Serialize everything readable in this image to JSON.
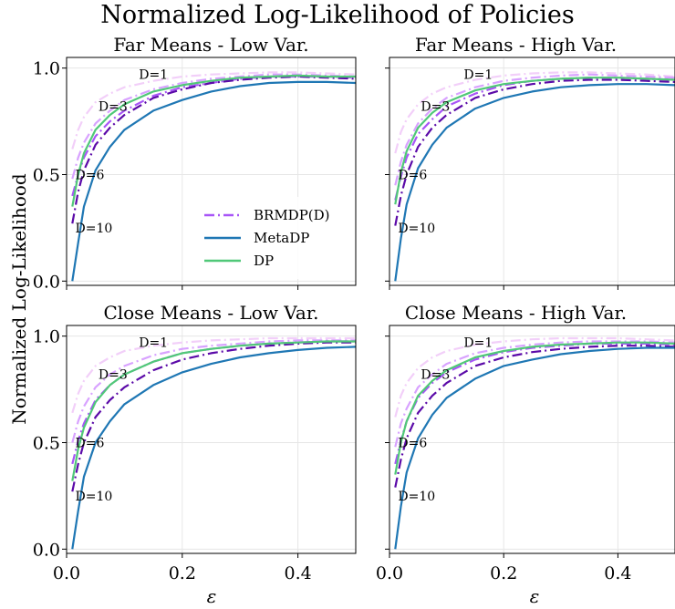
{
  "figure": {
    "title": "Normalized Log-Likelihood of Policies",
    "ylabel": "Normalized Log-Likelihood",
    "xlabel": "ε"
  },
  "legend": {
    "items": [
      {
        "label": "BRMDP(D)",
        "color": "#a855f7",
        "style": "dashdot"
      },
      {
        "label": "MetaDP",
        "color": "#1f77b4",
        "style": "solid"
      },
      {
        "label": "DP",
        "color": "#50c878",
        "style": "solid"
      }
    ]
  },
  "chart_data": [
    {
      "type": "line",
      "title": "Far Means - Low Var.",
      "xlim": [
        0,
        0.5
      ],
      "ylim": [
        -0.02,
        1.05
      ],
      "xticks": [
        "0.0",
        "0.2",
        "0.4"
      ],
      "yticks": [
        "0.0",
        "0.5",
        "1.0"
      ],
      "grid": true,
      "x": [
        0.01,
        0.02,
        0.03,
        0.05,
        0.075,
        0.1,
        0.15,
        0.2,
        0.25,
        0.3,
        0.35,
        0.4,
        0.45,
        0.5
      ],
      "series": [
        {
          "name": "BRMDP(D)",
          "depth": "D=1",
          "color": "#f2cff9",
          "dash": "dashdot",
          "values": [
            0.62,
            0.71,
            0.77,
            0.84,
            0.88,
            0.91,
            0.94,
            0.96,
            0.97,
            0.975,
            0.98,
            0.98,
            0.975,
            0.97
          ]
        },
        {
          "name": "BRMDP(D)",
          "depth": "D=3",
          "color": "#d8a2ff",
          "dash": "dashdot",
          "values": [
            0.48,
            0.58,
            0.65,
            0.74,
            0.8,
            0.85,
            0.9,
            0.93,
            0.95,
            0.96,
            0.97,
            0.97,
            0.965,
            0.96
          ]
        },
        {
          "name": "BRMDP(D)",
          "depth": "D=6",
          "color": "#a855f7",
          "dash": "dashdot",
          "values": [
            0.4,
            0.5,
            0.58,
            0.68,
            0.75,
            0.8,
            0.87,
            0.91,
            0.93,
            0.95,
            0.96,
            0.96,
            0.96,
            0.955
          ]
        },
        {
          "name": "BRMDP(D)",
          "depth": "D=10",
          "color": "#5b0aa8",
          "dash": "dashdot",
          "values": [
            0.27,
            0.42,
            0.52,
            0.64,
            0.72,
            0.78,
            0.86,
            0.9,
            0.93,
            0.945,
            0.955,
            0.96,
            0.955,
            0.95
          ]
        },
        {
          "name": "MetaDP",
          "color": "#1f77b4",
          "dash": "solid",
          "values": [
            0.0,
            0.18,
            0.35,
            0.52,
            0.63,
            0.71,
            0.8,
            0.85,
            0.89,
            0.915,
            0.93,
            0.935,
            0.935,
            0.93
          ]
        },
        {
          "name": "DP",
          "color": "#50c878",
          "dash": "solid",
          "values": [
            0.35,
            0.5,
            0.6,
            0.71,
            0.78,
            0.83,
            0.89,
            0.92,
            0.94,
            0.955,
            0.96,
            0.965,
            0.96,
            0.96
          ]
        }
      ],
      "depth_labels": [
        {
          "text": "D=1",
          "x": 0.125,
          "y": 0.97
        },
        {
          "text": "D=3",
          "x": 0.055,
          "y": 0.82
        },
        {
          "text": "D=6",
          "x": 0.015,
          "y": 0.5
        },
        {
          "text": "D=10",
          "x": 0.015,
          "y": 0.25
        }
      ]
    },
    {
      "type": "line",
      "title": "Far Means - High Var.",
      "xlim": [
        0,
        0.5
      ],
      "ylim": [
        -0.02,
        1.05
      ],
      "xticks": [
        "0.0",
        "0.2",
        "0.4"
      ],
      "yticks": [],
      "grid": true,
      "x": [
        0.01,
        0.02,
        0.03,
        0.05,
        0.075,
        0.1,
        0.15,
        0.2,
        0.25,
        0.3,
        0.35,
        0.4,
        0.45,
        0.5
      ],
      "series": [
        {
          "name": "BRMDP(D)",
          "depth": "D=1",
          "color": "#f2cff9",
          "dash": "dashdot",
          "values": [
            0.6,
            0.7,
            0.76,
            0.83,
            0.88,
            0.91,
            0.945,
            0.965,
            0.975,
            0.98,
            0.98,
            0.975,
            0.97,
            0.96
          ]
        },
        {
          "name": "BRMDP(D)",
          "depth": "D=3",
          "color": "#d8a2ff",
          "dash": "dashdot",
          "values": [
            0.45,
            0.56,
            0.64,
            0.74,
            0.81,
            0.86,
            0.91,
            0.94,
            0.955,
            0.965,
            0.97,
            0.965,
            0.96,
            0.955
          ]
        },
        {
          "name": "BRMDP(D)",
          "depth": "D=6",
          "color": "#a855f7",
          "dash": "dashdot",
          "values": [
            0.38,
            0.49,
            0.58,
            0.69,
            0.76,
            0.82,
            0.88,
            0.92,
            0.94,
            0.95,
            0.955,
            0.955,
            0.95,
            0.945
          ]
        },
        {
          "name": "BRMDP(D)",
          "depth": "D=10",
          "color": "#5b0aa8",
          "dash": "dashdot",
          "values": [
            0.26,
            0.4,
            0.5,
            0.63,
            0.72,
            0.78,
            0.86,
            0.9,
            0.925,
            0.94,
            0.945,
            0.945,
            0.94,
            0.935
          ]
        },
        {
          "name": "MetaDP",
          "color": "#1f77b4",
          "dash": "solid",
          "values": [
            0.0,
            0.2,
            0.36,
            0.53,
            0.64,
            0.72,
            0.81,
            0.86,
            0.89,
            0.91,
            0.92,
            0.925,
            0.925,
            0.92
          ]
        },
        {
          "name": "DP",
          "color": "#50c878",
          "dash": "solid",
          "values": [
            0.36,
            0.51,
            0.61,
            0.72,
            0.79,
            0.84,
            0.895,
            0.925,
            0.94,
            0.95,
            0.955,
            0.955,
            0.95,
            0.945
          ]
        }
      ],
      "depth_labels": [
        {
          "text": "D=1",
          "x": 0.13,
          "y": 0.97
        },
        {
          "text": "D=3",
          "x": 0.055,
          "y": 0.82
        },
        {
          "text": "D=6",
          "x": 0.015,
          "y": 0.5
        },
        {
          "text": "D=10",
          "x": 0.015,
          "y": 0.25
        }
      ]
    },
    {
      "type": "line",
      "title": "Close Means - Low Var.",
      "xlim": [
        0,
        0.5
      ],
      "ylim": [
        -0.02,
        1.05
      ],
      "xticks": [
        "0.0",
        "0.2",
        "0.4"
      ],
      "yticks": [
        "0.0",
        "0.5",
        "1.0"
      ],
      "grid": true,
      "x": [
        0.01,
        0.02,
        0.03,
        0.05,
        0.075,
        0.1,
        0.15,
        0.2,
        0.25,
        0.3,
        0.35,
        0.4,
        0.45,
        0.5
      ],
      "series": [
        {
          "name": "BRMDP(D)",
          "depth": "D=1",
          "color": "#f2cff9",
          "dash": "dashdot",
          "values": [
            0.64,
            0.73,
            0.79,
            0.86,
            0.9,
            0.93,
            0.955,
            0.97,
            0.98,
            0.985,
            0.99,
            0.99,
            0.99,
            0.99
          ]
        },
        {
          "name": "BRMDP(D)",
          "depth": "D=3",
          "color": "#d8a2ff",
          "dash": "dashdot",
          "values": [
            0.5,
            0.6,
            0.67,
            0.76,
            0.82,
            0.86,
            0.91,
            0.94,
            0.955,
            0.965,
            0.975,
            0.98,
            0.98,
            0.98
          ]
        },
        {
          "name": "BRMDP(D)",
          "depth": "D=6",
          "color": "#a855f7",
          "dash": "dashdot",
          "values": [
            0.4,
            0.51,
            0.59,
            0.7,
            0.77,
            0.82,
            0.88,
            0.92,
            0.94,
            0.955,
            0.965,
            0.97,
            0.975,
            0.975
          ]
        },
        {
          "name": "BRMDP(D)",
          "depth": "D=10",
          "color": "#5b0aa8",
          "dash": "dashdot",
          "values": [
            0.27,
            0.4,
            0.5,
            0.62,
            0.7,
            0.76,
            0.84,
            0.89,
            0.92,
            0.94,
            0.955,
            0.965,
            0.97,
            0.97
          ]
        },
        {
          "name": "MetaDP",
          "color": "#1f77b4",
          "dash": "solid",
          "values": [
            0.0,
            0.18,
            0.34,
            0.5,
            0.6,
            0.68,
            0.77,
            0.83,
            0.87,
            0.9,
            0.92,
            0.935,
            0.945,
            0.95
          ]
        },
        {
          "name": "DP",
          "color": "#50c878",
          "dash": "solid",
          "values": [
            0.32,
            0.47,
            0.57,
            0.69,
            0.77,
            0.82,
            0.88,
            0.92,
            0.94,
            0.955,
            0.965,
            0.97,
            0.975,
            0.975
          ]
        }
      ],
      "depth_labels": [
        {
          "text": "D=1",
          "x": 0.125,
          "y": 0.97
        },
        {
          "text": "D=3",
          "x": 0.055,
          "y": 0.82
        },
        {
          "text": "D=6",
          "x": 0.015,
          "y": 0.5
        },
        {
          "text": "D=10",
          "x": 0.015,
          "y": 0.25
        }
      ]
    },
    {
      "type": "line",
      "title": "Close Means - High Var.",
      "xlim": [
        0,
        0.5
      ],
      "ylim": [
        -0.02,
        1.05
      ],
      "xticks": [
        "0.0",
        "0.2",
        "0.4"
      ],
      "yticks": [],
      "grid": true,
      "x": [
        0.01,
        0.02,
        0.03,
        0.05,
        0.075,
        0.1,
        0.15,
        0.2,
        0.25,
        0.3,
        0.35,
        0.4,
        0.45,
        0.5
      ],
      "series": [
        {
          "name": "BRMDP(D)",
          "depth": "D=1",
          "color": "#f2cff9",
          "dash": "dashdot",
          "values": [
            0.62,
            0.72,
            0.78,
            0.85,
            0.9,
            0.93,
            0.96,
            0.975,
            0.985,
            0.99,
            0.99,
            0.99,
            0.985,
            0.98
          ]
        },
        {
          "name": "BRMDP(D)",
          "depth": "D=3",
          "color": "#d8a2ff",
          "dash": "dashdot",
          "values": [
            0.48,
            0.59,
            0.66,
            0.76,
            0.82,
            0.87,
            0.92,
            0.945,
            0.96,
            0.97,
            0.975,
            0.975,
            0.975,
            0.97
          ]
        },
        {
          "name": "BRMDP(D)",
          "depth": "D=6",
          "color": "#a855f7",
          "dash": "dashdot",
          "values": [
            0.4,
            0.51,
            0.6,
            0.71,
            0.78,
            0.83,
            0.89,
            0.925,
            0.945,
            0.955,
            0.965,
            0.965,
            0.965,
            0.96
          ]
        },
        {
          "name": "BRMDP(D)",
          "depth": "D=10",
          "color": "#5b0aa8",
          "dash": "dashdot",
          "values": [
            0.29,
            0.42,
            0.52,
            0.64,
            0.72,
            0.78,
            0.86,
            0.9,
            0.925,
            0.94,
            0.95,
            0.955,
            0.955,
            0.95
          ]
        },
        {
          "name": "MetaDP",
          "color": "#1f77b4",
          "dash": "solid",
          "values": [
            0.0,
            0.2,
            0.36,
            0.52,
            0.63,
            0.71,
            0.8,
            0.86,
            0.89,
            0.915,
            0.93,
            0.94,
            0.945,
            0.945
          ]
        },
        {
          "name": "DP",
          "color": "#50c878",
          "dash": "solid",
          "values": [
            0.35,
            0.5,
            0.6,
            0.72,
            0.79,
            0.84,
            0.9,
            0.93,
            0.95,
            0.96,
            0.965,
            0.97,
            0.97,
            0.965
          ]
        }
      ],
      "depth_labels": [
        {
          "text": "D=1",
          "x": 0.13,
          "y": 0.97
        },
        {
          "text": "D=3",
          "x": 0.055,
          "y": 0.82
        },
        {
          "text": "D=6",
          "x": 0.015,
          "y": 0.5
        },
        {
          "text": "D=10",
          "x": 0.015,
          "y": 0.25
        }
      ]
    }
  ]
}
